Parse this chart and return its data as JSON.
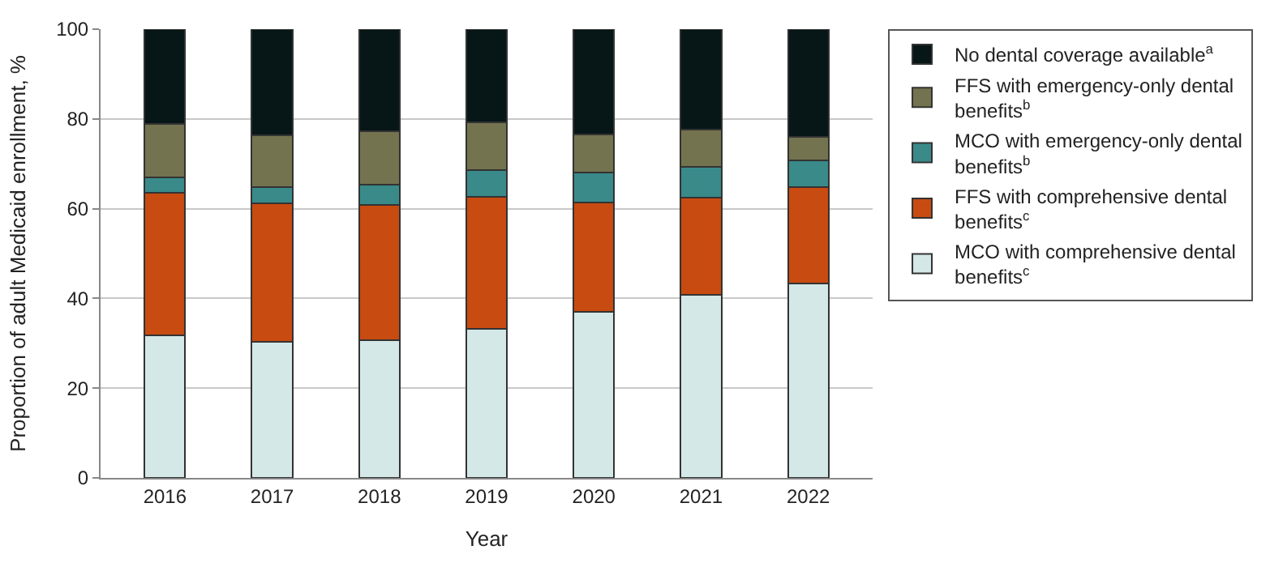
{
  "chart_data": {
    "type": "bar",
    "stacked": true,
    "xlabel": "Year",
    "ylabel": "Proportion of adult Medicaid enrollment, %",
    "categories": [
      "2016",
      "2017",
      "2018",
      "2019",
      "2020",
      "2021",
      "2022"
    ],
    "series": [
      {
        "name": "MCO with comprehensive dental benefits$^{c}$",
        "color": "#d4e8e8",
        "values": [
          31.7,
          30.4,
          30.6,
          33.3,
          37.0,
          40.8,
          43.3
        ]
      },
      {
        "name": "FFS with comprehensive dental benefits$^{c}$",
        "color": "#c84b11",
        "values": [
          31.8,
          30.8,
          30.2,
          29.4,
          24.3,
          21.6,
          21.5
        ]
      },
      {
        "name": "MCO with emergency-only dental benefits$^{b}$",
        "color": "#3a8a8a",
        "values": [
          3.4,
          3.6,
          4.5,
          5.9,
          6.8,
          7.0,
          6.0
        ]
      },
      {
        "name": "FFS with emergency-only dental benefits$^{b}$",
        "color": "#73734f",
        "values": [
          11.9,
          11.6,
          12.0,
          10.7,
          8.4,
          8.2,
          5.2
        ]
      },
      {
        "name": "No dental coverage available$^{a}$",
        "color": "#071616",
        "values": [
          21.2,
          23.6,
          22.7,
          20.7,
          23.5,
          22.4,
          24.0
        ]
      }
    ],
    "ylim": [
      0,
      100
    ],
    "yticks": [
      0,
      20,
      40,
      60,
      80,
      100
    ],
    "grid": "y",
    "legend": "top right"
  }
}
